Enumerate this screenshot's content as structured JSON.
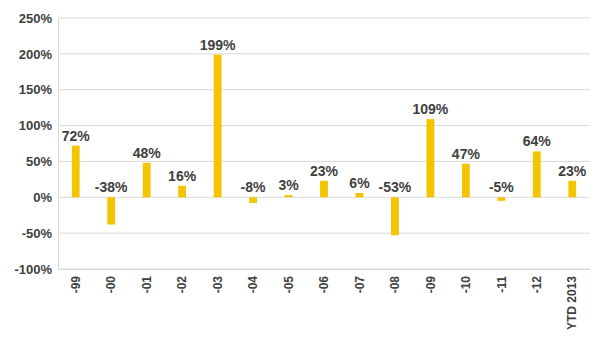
{
  "chart_data": {
    "type": "bar",
    "categories": [
      "-99",
      "-00",
      "-01",
      "-02",
      "-03",
      "-04",
      "-05",
      "-06",
      "-07",
      "-08",
      "-09",
      "-10",
      "-11",
      "-12",
      "YTD 2013"
    ],
    "values": [
      72,
      -38,
      48,
      16,
      199,
      -8,
      3,
      23,
      6,
      -53,
      109,
      47,
      -5,
      64,
      23
    ],
    "value_labels": [
      "72%",
      "-38%",
      "48%",
      "16%",
      "199%",
      "-8%",
      "3%",
      "23%",
      "6%",
      "-53%",
      "109%",
      "47%",
      "-5%",
      "64%",
      "23%"
    ],
    "color": "#f5c400",
    "ylim": [
      -100,
      250
    ],
    "yticks": [
      {
        "value": -100,
        "label": "-100%"
      },
      {
        "value": -50,
        "label": "-50%"
      },
      {
        "value": 0,
        "label": "0%"
      },
      {
        "value": 50,
        "label": "50%"
      },
      {
        "value": 100,
        "label": "100%"
      },
      {
        "value": 150,
        "label": "150%"
      },
      {
        "value": 200,
        "label": "200%"
      },
      {
        "value": 250,
        "label": "250%"
      }
    ],
    "grid": true,
    "data_labels": true
  }
}
